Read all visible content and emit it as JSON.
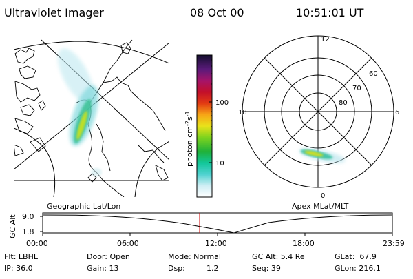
{
  "header": {
    "title": "Ultraviolet Imager",
    "date": "08 Oct 00",
    "time": "10:51:01 UT"
  },
  "colorbar": {
    "unit": "photon cm",
    "unit_exp1": "-2",
    "unit_mid": "s",
    "unit_exp2": "-1",
    "tick_100": "100",
    "tick_10": "10"
  },
  "polar": {
    "mlt_top": "12",
    "mlt_left": "18",
    "mlt_right": "6",
    "mlt_bottom": "0",
    "lat_60": "60",
    "lat_70": "70",
    "lat_80": "80"
  },
  "captions": {
    "left": "Geographic Lat/Lon",
    "right": "Apex MLat/MLT"
  },
  "altitude_plot": {
    "axis_label": "GC Alt",
    "y_max": "9.0",
    "y_min": "1.8",
    "x_ticks": [
      "00:00",
      "06:00",
      "12:00",
      "18:00",
      "23:59"
    ],
    "marker_color": "#cc0000"
  },
  "info": {
    "flt": "Flt: LBHL",
    "ip": "IP: 36.0",
    "door": "Door: Open",
    "gain": "Gain: 13",
    "mode": "Mode: Normal",
    "dsp_label": "Dsp:",
    "dsp_value": "1.2",
    "gcalt": "GC Alt: 5.4 Re",
    "seq": "Seq: 39",
    "glat": "GLat:  67.9",
    "glon": "GLon: 216.1"
  }
}
